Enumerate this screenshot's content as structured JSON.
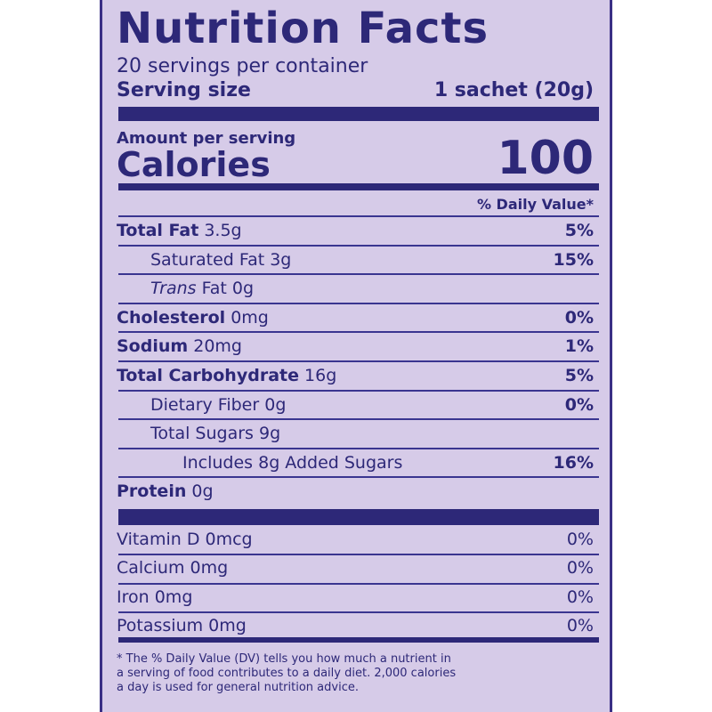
{
  "title": "Nutrition Facts",
  "servings": "20 servings per container",
  "serving_size": {
    "label": "Serving size",
    "value": "1 sachet (20g)"
  },
  "amount_per_serving": "Amount per serving",
  "calories": {
    "label": "Calories",
    "value": "100"
  },
  "dv_header": "% Daily Value*",
  "nutrients": [
    {
      "name": "Total Fat",
      "amount": "3.5g",
      "dv": "5%",
      "level": 0
    },
    {
      "name": "Saturated Fat",
      "amount": "3g",
      "dv": "15%",
      "level": 1
    },
    {
      "name_italic": "Trans",
      "name": "Fat",
      "amount": "0g",
      "level": 1
    },
    {
      "name": "Cholesterol",
      "amount": "0mg",
      "dv": "0%",
      "level": 0
    },
    {
      "name": "Sodium",
      "amount": "20mg",
      "dv": "1%",
      "level": 0
    },
    {
      "name": "Total Carbohydrate",
      "amount": "16g",
      "dv": "5%",
      "level": 0
    },
    {
      "name": "Dietary Fiber",
      "amount": "0g",
      "dv": "0%",
      "level": 1
    },
    {
      "name": "Total Sugars",
      "amount": "9g",
      "level": 1
    },
    {
      "name": "Includes 8g Added Sugars",
      "dv": "16%",
      "level": 2
    },
    {
      "name": "Protein",
      "amount": "0g",
      "level": 0
    }
  ],
  "vitamins": [
    {
      "name": "Vitamin D",
      "amount": "0mcg",
      "dv": "0%"
    },
    {
      "name": "Calcium",
      "amount": "0mg",
      "dv": "0%"
    },
    {
      "name": "Iron",
      "amount": "0mg",
      "dv": "0%"
    },
    {
      "name": "Potassium",
      "amount": "0mg",
      "dv": "0%"
    }
  ],
  "footnote": [
    "* The % Daily Value (DV) tells you how much a nutrient in",
    "a serving of food contributes to a daily diet. 2,000 calories",
    "a day is used for general nutrition advice."
  ]
}
